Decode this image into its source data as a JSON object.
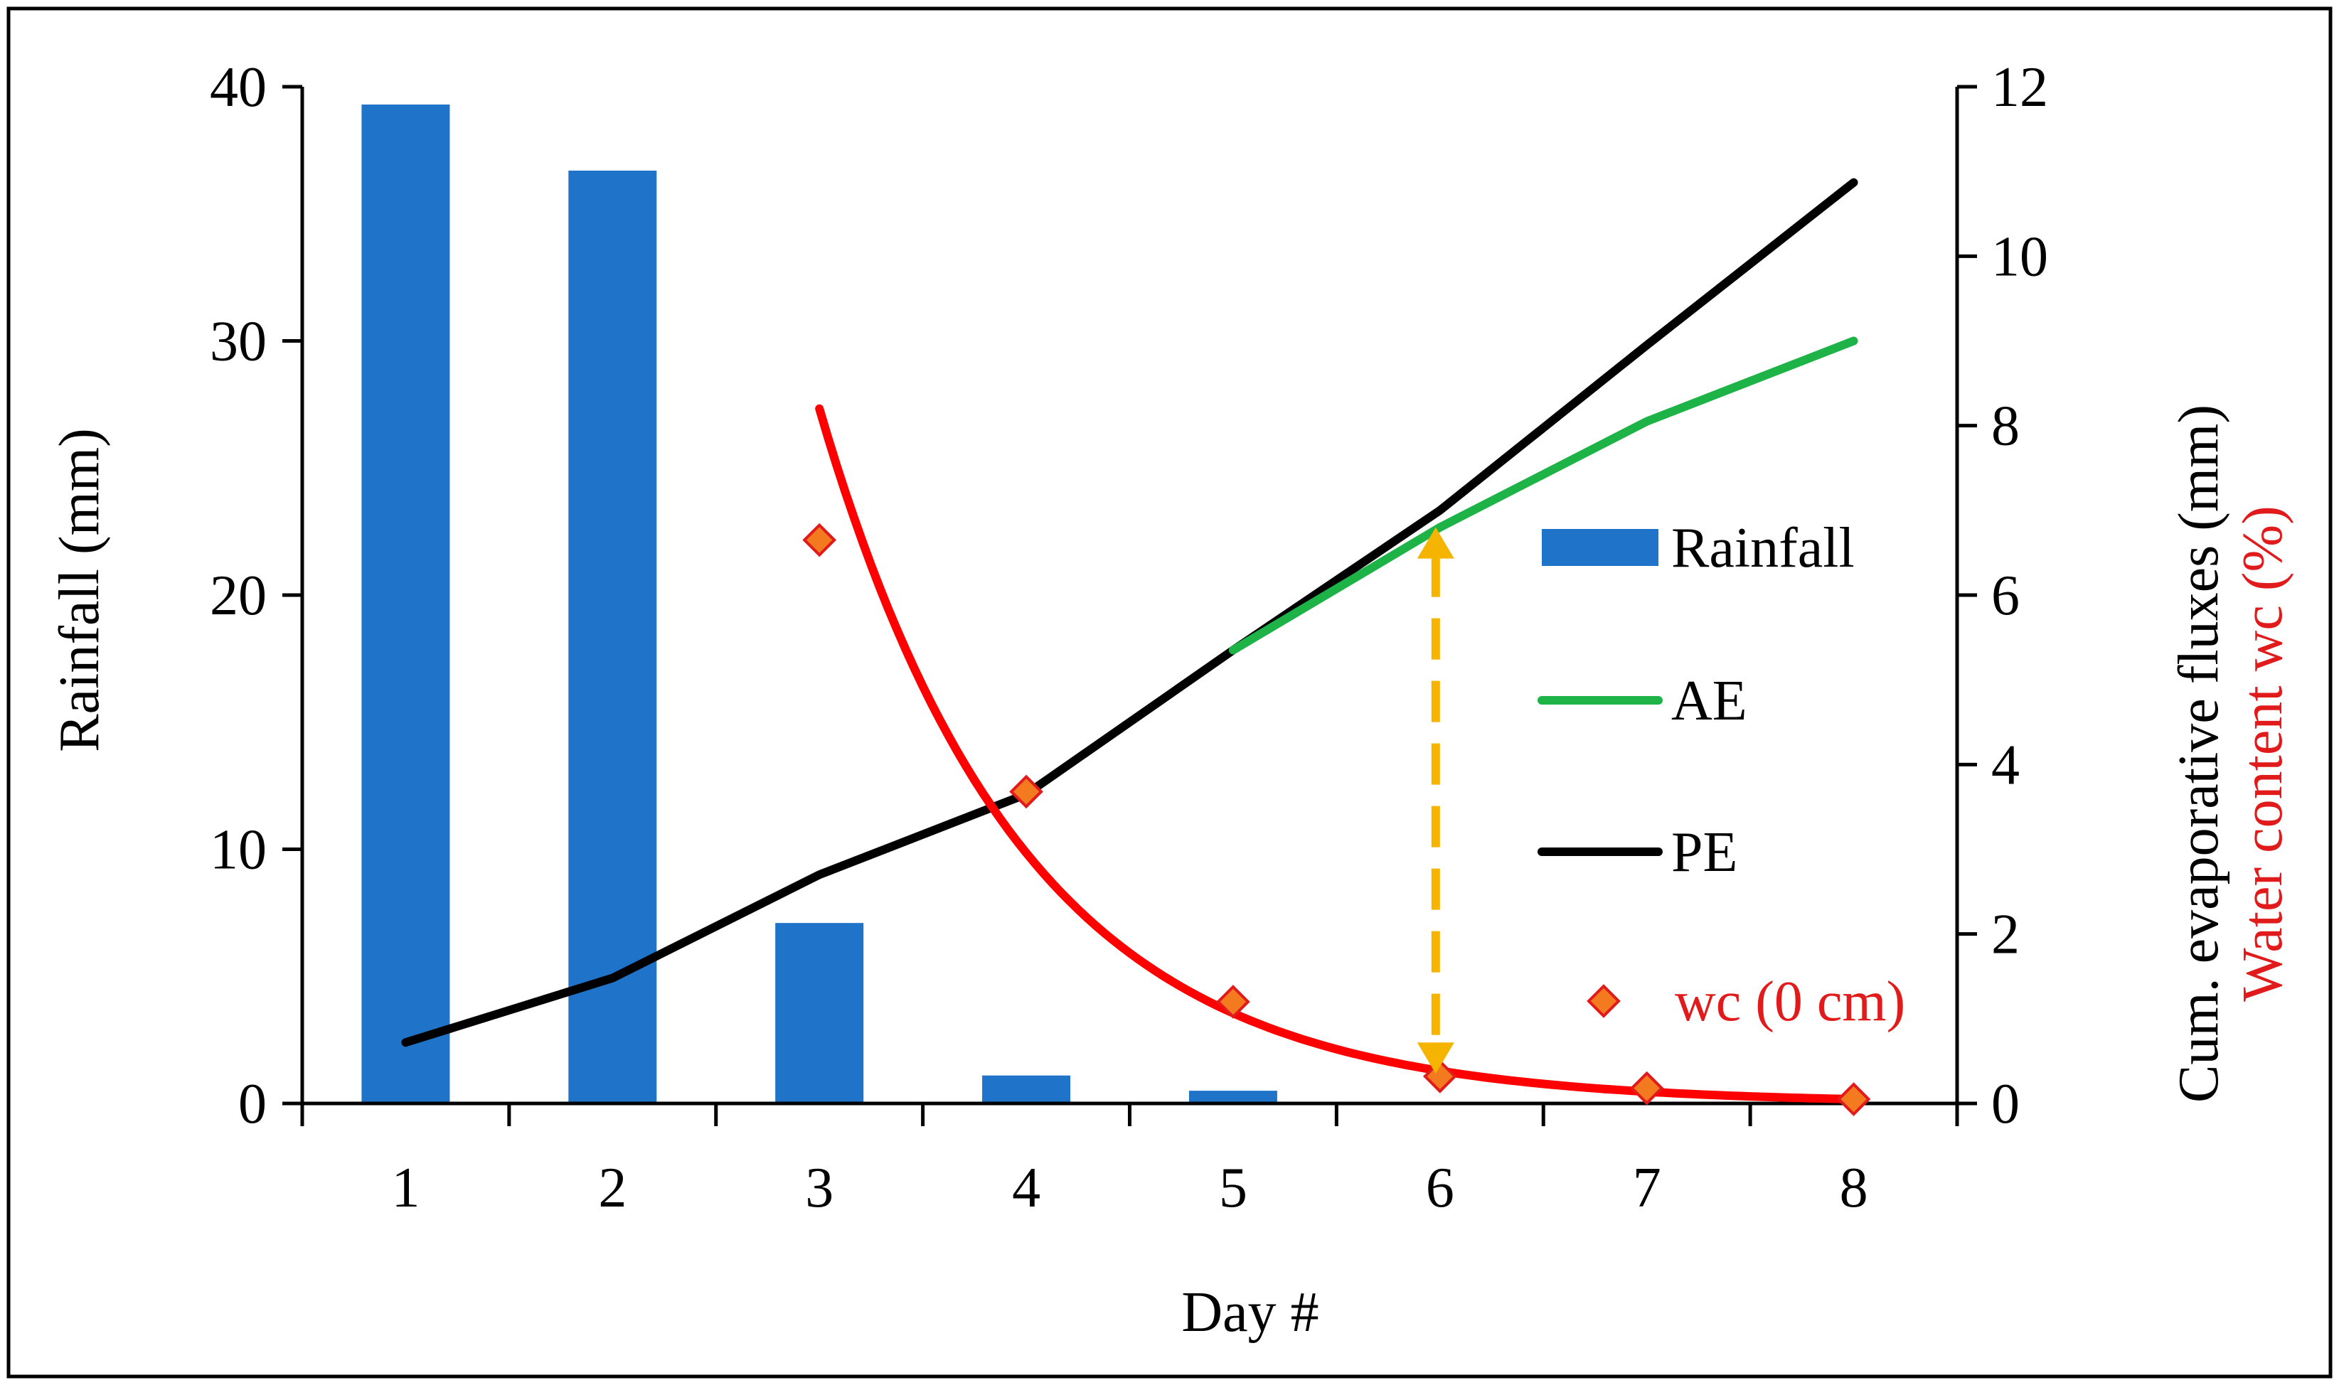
{
  "chart_data": {
    "type": "bar",
    "xlabel": "Day #",
    "ylabel_left": "Rainfall (mm)",
    "ylabel_right_1": "Cum. evaporative fluxes (mm)",
    "ylabel_right_2": "Water content wc (%)",
    "categories": [
      "1",
      "2",
      "3",
      "4",
      "5",
      "6",
      "7",
      "8"
    ],
    "left_axis": {
      "min": 0,
      "max": 40,
      "ticks": [
        "0",
        "10",
        "20",
        "30",
        "40"
      ]
    },
    "right_axis": {
      "min": 0,
      "max": 12,
      "ticks": [
        "0",
        "2",
        "4",
        "6",
        "8",
        "10",
        "12"
      ]
    },
    "series": [
      {
        "name": "Rainfall",
        "kind": "bar",
        "axis": "left",
        "color": "#1f74c9",
        "x": [
          1,
          2,
          3,
          4,
          5
        ],
        "values": [
          39.3,
          36.7,
          7.1,
          1.1,
          0.5
        ]
      },
      {
        "name": "AE",
        "kind": "line",
        "axis": "right",
        "color": "#1db347",
        "x": [
          5,
          6,
          7,
          8
        ],
        "values": [
          5.35,
          6.8,
          8.05,
          9.0
        ]
      },
      {
        "name": "PE",
        "kind": "line",
        "axis": "right",
        "color": "#000000",
        "x": [
          1,
          2,
          3,
          4,
          5,
          6,
          7,
          8
        ],
        "values": [
          0.72,
          1.48,
          2.7,
          3.65,
          5.35,
          7.0,
          8.95,
          10.87
        ]
      },
      {
        "name": "wc (0 cm)",
        "kind": "scatter",
        "axis": "right",
        "color": "#f47a1f",
        "edge": "#e11b1b",
        "x": [
          3,
          4,
          5,
          6,
          7,
          8
        ],
        "values": [
          6.65,
          3.68,
          1.2,
          0.32,
          0.18,
          0.05
        ]
      }
    ],
    "fit_curve": {
      "name": "wc fit",
      "color": "#ff0000",
      "axis": "right",
      "x_start": 3,
      "x_end": 8,
      "y_start": 8.2,
      "y_end": 0.05
    },
    "annotation": {
      "type": "double-arrow",
      "color": "#f5b400",
      "x": 6,
      "y_top": 6.8,
      "y_bottom": 0.35
    },
    "legend": {
      "position": "right-middle",
      "entries": [
        {
          "label": "Rainfall",
          "kind": "bar",
          "color": "#1f74c9"
        },
        {
          "label": "AE",
          "kind": "line",
          "color": "#1db347"
        },
        {
          "label": "PE",
          "kind": "line",
          "color": "#000000"
        },
        {
          "label": "wc (0 cm)",
          "kind": "marker",
          "color": "#f47a1f",
          "text_color": "#e11b1b"
        }
      ]
    },
    "colors": {
      "frame": "#000000",
      "right_label_red": "#e11b1b"
    }
  }
}
